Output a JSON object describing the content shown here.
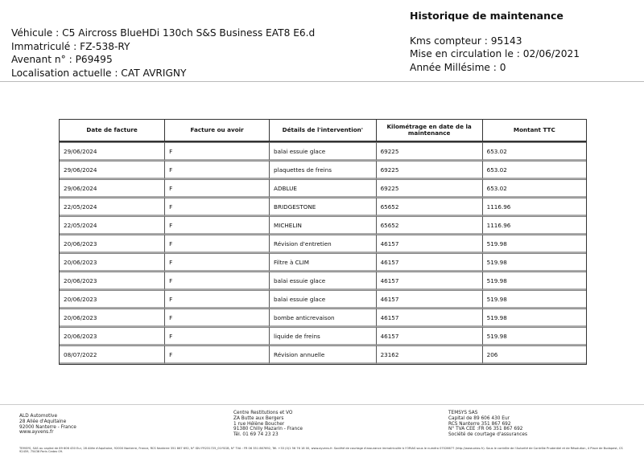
{
  "vehicle": {
    "line1": "Véhicule : C5 Aircross BlueHDi 130ch S&S Business EAT8 E6.d",
    "line2": "Immatriculé : FZ-538-RY",
    "line3": "Avenant n° : P69495",
    "line4": "Localisation actuelle : CAT AVRIGNY"
  },
  "history": {
    "title": "Historique de maintenance",
    "line1": "Kms compteur : 95143",
    "line2": "Mise en circulation le : 02/06/2021",
    "line3": "Année Millésime : 0"
  },
  "table": {
    "headers": [
      "Date de facture",
      "Facture ou avoir",
      "Détails de l'intervention'",
      "Kilométrage en date de la maintenance",
      "Montant TTC"
    ],
    "rows": [
      [
        "29/06/2024",
        "F",
        "balai essuie glace",
        "69225",
        "653.02"
      ],
      [
        "29/06/2024",
        "F",
        "plaquettes de freins",
        "69225",
        "653.02"
      ],
      [
        "29/06/2024",
        "F",
        "ADBLUE",
        "69225",
        "653.02"
      ],
      [
        "22/05/2024",
        "F",
        "BRIDGESTONE",
        "65652",
        "1116.96"
      ],
      [
        "22/05/2024",
        "F",
        "MICHELIN",
        "65652",
        "1116.96"
      ],
      [
        "20/06/2023",
        "F",
        "Révision d'entretien",
        "46157",
        "519.98"
      ],
      [
        "20/06/2023",
        "F",
        "Filtre à  CLIM",
        "46157",
        "519.98"
      ],
      [
        "20/06/2023",
        "F",
        "balai essuie glace",
        "46157",
        "519.98"
      ],
      [
        "20/06/2023",
        "F",
        "balai essuie glace",
        "46157",
        "519.98"
      ],
      [
        "20/06/2023",
        "F",
        "bombe anticrevaison",
        "46157",
        "519.98"
      ],
      [
        "20/06/2023",
        "F",
        "liquide de freins",
        "46157",
        "519.98"
      ],
      [
        "08/07/2022",
        "F",
        "Révision annuelle",
        "23162",
        "206"
      ]
    ]
  },
  "footer": {
    "col1": [
      "ALD Automotive",
      "28 Allée d'Aquitaine",
      "92000 Nanterre - France",
      "www.ayvens.fr"
    ],
    "col2": [
      "Centre Restitutions et VO",
      "ZA Butte aux Bergers",
      "1 rue Hélène Boucher",
      "91380 Chilly Mazarin - France",
      "Tél. 01 69 74 23 23"
    ],
    "col3": [
      "TEMSYS SAS",
      "Capital de 89 606 430 Eur",
      "RCS Nanterre 351 867 692",
      "N° TVA CEE :FR 06 351 867 692",
      "Société de courtage d'assurances"
    ],
    "legal": "TEMSYS, SAS au capital de 89 606 430 Eur, 28 Allée d'Aquitaine, 92000 Nanterre, France, RCS Nanterre 351 867 692, N° IDU FR231725_01YSGB, N° TVA : FR 06 351 867692, Tél. +33 (0)1 56 76 18 00, www.ayvens.fr. Société de courtage d'assurance immatriculée à l'ORIAS sous le numéro 07026677 (http://www.orias.fr). Sous le contrôle de l'Autorité de Contrôle Prudentiel et de Résolution, 4 Place de Budapest, CS 92459, 75436 Paris Cedex 09."
  }
}
